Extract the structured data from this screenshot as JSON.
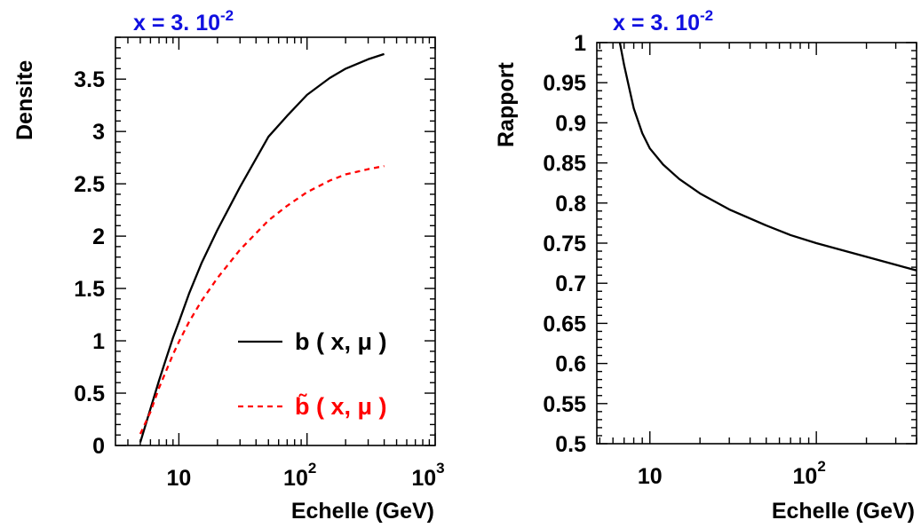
{
  "chart_data": [
    {
      "type": "line",
      "title": "x = 3. 10",
      "title_exponent": "-2",
      "title_color": "#1010e0",
      "xlabel": "Echelle (GeV)",
      "ylabel": "Densite",
      "xscale": "log",
      "xlim": [
        3.2,
        1000
      ],
      "ylim": [
        0,
        3.9
      ],
      "x_ticks": [
        {
          "base": "10",
          "exp": ""
        },
        {
          "base": "10",
          "exp": "2"
        },
        {
          "base": "10",
          "exp": "3"
        }
      ],
      "y_ticks": [
        "0",
        "0.5",
        "1",
        "1.5",
        "2",
        "2.5",
        "3",
        "3.5"
      ],
      "grid": false,
      "legend_position": "bottom-right",
      "series": [
        {
          "name": "b ( x, μ )",
          "color": "#000000",
          "style": "solid",
          "x": [
            5.0,
            6.0,
            7.0,
            8.0,
            9.0,
            10.0,
            12.0,
            15.0,
            20.0,
            30.0,
            50.0,
            70.0,
            100.0,
            150.0,
            200.0,
            300.0,
            400.0
          ],
          "y": [
            0.03,
            0.35,
            0.62,
            0.84,
            1.03,
            1.18,
            1.45,
            1.74,
            2.06,
            2.47,
            2.95,
            3.15,
            3.35,
            3.51,
            3.6,
            3.69,
            3.74
          ]
        },
        {
          "name": "b̃ ( x, μ )",
          "color": "#ff0000",
          "style": "dashed",
          "x": [
            5.0,
            6.0,
            7.0,
            8.0,
            9.0,
            10.0,
            12.0,
            15.0,
            20.0,
            30.0,
            50.0,
            70.0,
            100.0,
            150.0,
            200.0,
            300.0,
            400.0
          ],
          "y": [
            0.11,
            0.32,
            0.55,
            0.72,
            0.87,
            0.99,
            1.18,
            1.38,
            1.6,
            1.87,
            2.15,
            2.29,
            2.42,
            2.53,
            2.59,
            2.64,
            2.67
          ]
        }
      ]
    },
    {
      "type": "line",
      "title": "x = 3. 10",
      "title_exponent": "-2",
      "title_color": "#1010e0",
      "xlabel": "Echelle (GeV)",
      "ylabel": "Rapport",
      "xscale": "log",
      "xlim": [
        4.8,
        400
      ],
      "ylim": [
        0.5,
        1.0
      ],
      "x_ticks": [
        {
          "base": "10",
          "exp": ""
        },
        {
          "base": "10",
          "exp": "2"
        }
      ],
      "y_ticks": [
        "0.5",
        "0.55",
        "0.6",
        "0.65",
        "0.7",
        "0.75",
        "0.8",
        "0.85",
        "0.9",
        "0.95",
        "1"
      ],
      "grid": false,
      "series": [
        {
          "color": "#000000",
          "style": "solid",
          "x": [
            6.6,
            7.0,
            7.5,
            8.0,
            9.0,
            10.0,
            12.0,
            15.0,
            20.0,
            30.0,
            50.0,
            70.0,
            100.0,
            150.0,
            200.0,
            300.0,
            400.0
          ],
          "y": [
            1.0,
            0.972,
            0.944,
            0.918,
            0.887,
            0.868,
            0.848,
            0.83,
            0.812,
            0.792,
            0.772,
            0.76,
            0.75,
            0.74,
            0.733,
            0.723,
            0.716
          ]
        }
      ]
    }
  ]
}
